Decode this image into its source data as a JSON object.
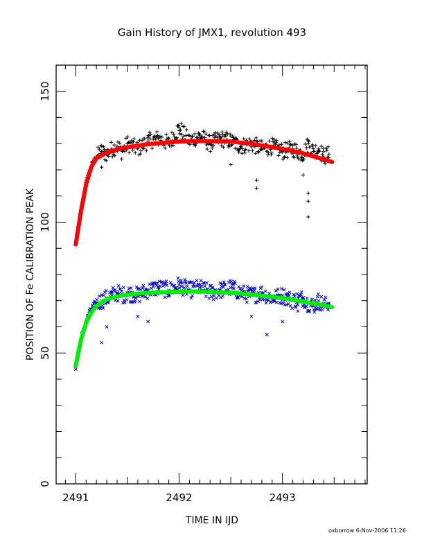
{
  "chart_data": {
    "type": "scatter",
    "title": "Gain History of JMX1, revolution 493",
    "xlabel": "TIME IN IJD",
    "ylabel": "POSITION OF Fe CALIBRATION PEAK",
    "xlim": [
      2490.81,
      2493.82
    ],
    "ylim": [
      0,
      160
    ],
    "x_ticks": [
      2491,
      2492,
      2493
    ],
    "x_tick_labels": [
      "2491",
      "2492",
      "2493"
    ],
    "y_ticks": [
      0,
      50,
      100,
      150
    ],
    "y_tick_labels": [
      "0",
      "50",
      "100",
      "150"
    ],
    "x_minor_step": 0.1,
    "y_minor_step": 10,
    "x_major_tick_step": 0.5,
    "grid": false,
    "legend": "none",
    "footer": "oxborrow   6-Nov-2006 11:26",
    "series": [
      {
        "marker": "plus",
        "color": "#000000",
        "fit": {
          "color": "#ff0000",
          "x": [
            2491.0,
            2491.05,
            2491.1,
            2491.15,
            2491.2,
            2491.3,
            2491.4,
            2491.5,
            2491.7,
            2492.0,
            2492.2,
            2492.5,
            2492.7,
            2493.0,
            2493.2,
            2493.4,
            2493.48
          ],
          "y": [
            91.5,
            104.0,
            114.5,
            121.0,
            124.5,
            126.5,
            127.8,
            128.6,
            129.8,
            130.8,
            131.0,
            130.8,
            129.9,
            128.0,
            126.3,
            124.0,
            123.0
          ]
        },
        "points": {
          "x": [
            2491.0,
            2491.02,
            2491.05,
            2491.08,
            2491.1,
            2491.13,
            2491.16,
            2491.2,
            2491.25,
            2491.3,
            2491.35,
            2491.4,
            2491.45,
            2491.5,
            2491.6,
            2491.7,
            2491.8,
            2491.9,
            2492.0,
            2492.1,
            2492.2,
            2492.3,
            2492.4,
            2492.5,
            2492.6,
            2492.7,
            2492.8,
            2492.9,
            2493.0,
            2493.1,
            2493.2,
            2493.25,
            2493.3,
            2493.35,
            2493.4,
            2493.45
          ],
          "y": [
            92,
            97,
            104,
            110,
            115,
            119,
            122,
            125,
            127,
            126,
            128,
            129,
            127,
            130,
            128,
            131,
            132,
            130,
            136,
            131,
            133,
            130,
            132,
            131,
            129,
            130,
            128,
            129,
            127,
            128,
            126,
            130,
            127,
            128,
            125,
            126
          ]
        },
        "outliers": {
          "x": [
            2491.25,
            2492.5,
            2492.75,
            2492.75,
            2493.2,
            2493.25,
            2493.25,
            2493.25
          ],
          "y": [
            121,
            122,
            116,
            113,
            118,
            111,
            108,
            102
          ]
        }
      },
      {
        "marker": "cross",
        "color": "#0000c8",
        "fit": {
          "color": "#00ee00",
          "x": [
            2491.0,
            2491.05,
            2491.1,
            2491.15,
            2491.2,
            2491.3,
            2491.4,
            2491.5,
            2491.7,
            2492.0,
            2492.2,
            2492.5,
            2492.7,
            2493.0,
            2493.2,
            2493.4,
            2493.48
          ],
          "y": [
            45.0,
            55.0,
            61.5,
            65.5,
            68.0,
            70.5,
            71.6,
            72.3,
            73.0,
            73.4,
            73.5,
            73.0,
            72.3,
            71.0,
            69.6,
            68.2,
            67.5
          ]
        },
        "points": {
          "x": [
            2491.0,
            2491.02,
            2491.05,
            2491.08,
            2491.1,
            2491.13,
            2491.16,
            2491.2,
            2491.25,
            2491.3,
            2491.35,
            2491.4,
            2491.45,
            2491.5,
            2491.6,
            2491.7,
            2491.8,
            2491.9,
            2492.0,
            2492.1,
            2492.2,
            2492.3,
            2492.4,
            2492.5,
            2492.6,
            2492.7,
            2492.8,
            2492.9,
            2493.0,
            2493.1,
            2493.2,
            2493.25,
            2493.3,
            2493.35,
            2493.4,
            2493.45
          ],
          "y": [
            45,
            50,
            55,
            59,
            62,
            65,
            67,
            69,
            70,
            71,
            72,
            73,
            72,
            73,
            72,
            74,
            75,
            74,
            76,
            74,
            75,
            73,
            74,
            75,
            73,
            72,
            73,
            71,
            72,
            70,
            71,
            69,
            68,
            70,
            68,
            69
          ]
        },
        "outliers": {
          "x": [
            2491.25,
            2491.3,
            2491.6,
            2491.7,
            2492.7,
            2492.85,
            2493.0,
            2493.15
          ],
          "y": [
            54,
            60,
            64,
            62,
            64,
            57,
            62,
            66
          ]
        }
      }
    ]
  }
}
